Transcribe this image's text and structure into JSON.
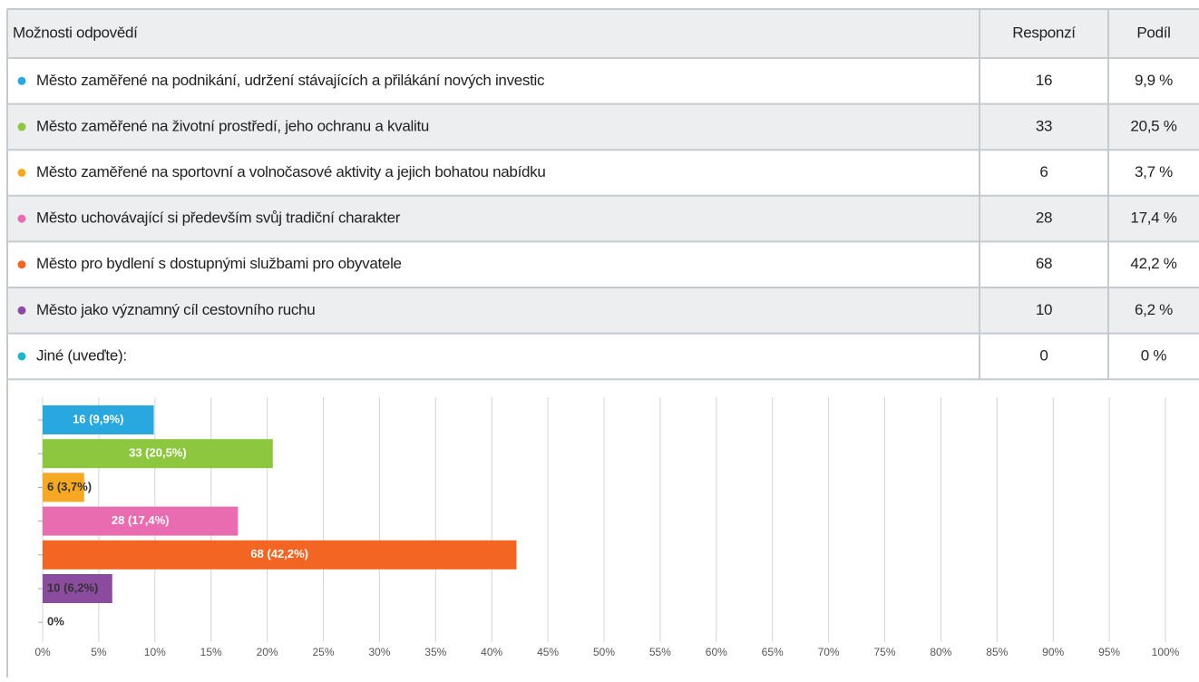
{
  "table": {
    "header": [
      "Možnosti odpovědí",
      "Responzí",
      "Podíl"
    ],
    "rows": [
      [
        "Město zaměřené na podnikání, udržení stávajících a přilákání nových investic",
        16,
        "9,9 %"
      ],
      [
        "Město zaměřené na životní prostředí, jeho ochranu a kvalitu",
        33,
        "20,5 %"
      ],
      [
        "Město zaměřené na sportovní a volnočasové aktivity a jejich bohatou nabídku",
        6,
        "3,7 %"
      ],
      [
        "Město uchovávající si především svůj tradiční charakter",
        28,
        "17,4 %"
      ],
      [
        "Město pro bydlení s dostupnými službami pro obyvatele",
        68,
        "42,2 %"
      ],
      [
        "Město jako významný cíl cestovního ruchu",
        10,
        "6,2 %"
      ],
      [
        "Jiné (uveďte):",
        0,
        "0 %"
      ]
    ]
  },
  "chart_data": {
    "type": "bar",
    "orientation": "horizontal",
    "categories": [
      null,
      null,
      null,
      null,
      null,
      null,
      null
    ],
    "values": [
      9.9,
      20.5,
      3.7,
      17.4,
      42.2,
      6.2,
      0
    ],
    "value_labels": [
      "16 (9,9%)",
      "33 (20,5%)",
      "6 (3,7%)",
      "28 (17,4%)",
      "68 (42,2%)",
      "10 (6,2%)",
      "0%"
    ],
    "colors": [
      "#29a8e0",
      "#8dc63f",
      "#f7a823",
      "#e96bb0",
      "#f26522",
      "#8b4b9f",
      "#1fb6c8"
    ],
    "xlim": [
      0,
      100
    ],
    "xticks": [
      {
        "value": 0,
        "label": "0%"
      },
      {
        "value": 5,
        "label": "5%"
      },
      {
        "value": 10,
        "label": "10%"
      },
      {
        "value": 15,
        "label": "15%"
      },
      {
        "value": 20,
        "label": "20%"
      },
      {
        "value": 25,
        "label": "25%"
      },
      {
        "value": 30,
        "label": "30%"
      },
      {
        "value": 35,
        "label": "35%"
      },
      {
        "value": 40,
        "label": "40%"
      },
      {
        "value": 45,
        "label": "45%"
      },
      {
        "value": 50,
        "label": "50%"
      },
      {
        "value": 55,
        "label": "55%"
      },
      {
        "value": 60,
        "label": "60%"
      },
      {
        "value": 65,
        "label": "65%"
      },
      {
        "value": 70,
        "label": "70%"
      },
      {
        "value": 75,
        "label": "75%"
      },
      {
        "value": 80,
        "label": "80%"
      },
      {
        "value": 85,
        "label": "85%"
      },
      {
        "value": 90,
        "label": "90%"
      },
      {
        "value": 95,
        "label": "95%"
      },
      {
        "value": 100,
        "label": "100%"
      }
    ],
    "grid": true
  }
}
